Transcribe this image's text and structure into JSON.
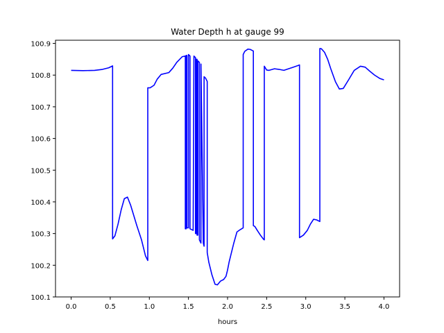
{
  "chart_data": {
    "type": "line",
    "title": "Water Depth h at gauge 99",
    "xlabel": "hours",
    "ylabel": "",
    "xlim": [
      -0.2,
      4.2
    ],
    "ylim": [
      100.1,
      100.91
    ],
    "xticks": [
      0.0,
      0.5,
      1.0,
      1.5,
      2.0,
      2.5,
      3.0,
      3.5,
      4.0
    ],
    "xtick_labels": [
      "0.0",
      "0.5",
      "1.0",
      "1.5",
      "2.0",
      "2.5",
      "3.0",
      "3.5",
      "4.0"
    ],
    "yticks": [
      100.1,
      100.2,
      100.3,
      100.4,
      100.5,
      100.6,
      100.7,
      100.8,
      100.9
    ],
    "ytick_labels": [
      "100.1",
      "100.2",
      "100.3",
      "100.4",
      "100.5",
      "100.6",
      "100.7",
      "100.8",
      "100.9"
    ],
    "grid": false,
    "series": [
      {
        "color": "#0000ff",
        "x": [
          0.0,
          0.15,
          0.3,
          0.4,
          0.48,
          0.53,
          0.53,
          0.56,
          0.6,
          0.64,
          0.68,
          0.72,
          0.76,
          0.84,
          0.9,
          0.95,
          0.98,
          0.98,
          1.01,
          1.06,
          1.1,
          1.15,
          1.25,
          1.3,
          1.35,
          1.42,
          1.46,
          1.46,
          1.47,
          1.47,
          1.48,
          1.48,
          1.5,
          1.5,
          1.52,
          1.52,
          1.56,
          1.57,
          1.59,
          1.59,
          1.6,
          1.6,
          1.61,
          1.61,
          1.62,
          1.62,
          1.64,
          1.64,
          1.66,
          1.66,
          1.69,
          1.7,
          1.7,
          1.72,
          1.73,
          1.74,
          1.74,
          1.76,
          1.8,
          1.84,
          1.87,
          1.91,
          1.95,
          1.98,
          2.0,
          2.02,
          2.04,
          2.08,
          2.12,
          2.16,
          2.2,
          2.2,
          2.22,
          2.26,
          2.29,
          2.33,
          2.33,
          2.35,
          2.38,
          2.42,
          2.46,
          2.47,
          2.47,
          2.5,
          2.53,
          2.6,
          2.66,
          2.72,
          2.78,
          2.84,
          2.9,
          2.92,
          2.92,
          2.97,
          3.02,
          3.06,
          3.1,
          3.14,
          3.18,
          3.18,
          3.2,
          3.24,
          3.28,
          3.32,
          3.38,
          3.43,
          3.48,
          3.55,
          3.62,
          3.7,
          3.76,
          3.82,
          3.88,
          3.95,
          4.0
        ],
        "y": [
          100.815,
          100.814,
          100.815,
          100.818,
          100.823,
          100.829,
          100.283,
          100.293,
          100.33,
          100.375,
          100.41,
          100.415,
          100.39,
          100.325,
          100.28,
          100.23,
          100.215,
          100.76,
          100.76,
          100.768,
          100.787,
          100.802,
          100.808,
          100.822,
          100.84,
          100.858,
          100.86,
          100.315,
          100.315,
          100.862,
          100.862,
          100.318,
          100.318,
          100.865,
          100.86,
          100.315,
          100.31,
          100.86,
          100.855,
          100.3,
          100.3,
          100.85,
          100.85,
          100.295,
          100.295,
          100.845,
          100.84,
          100.28,
          100.27,
          100.835,
          100.27,
          100.26,
          100.795,
          100.79,
          100.785,
          100.78,
          100.24,
          100.21,
          100.17,
          100.14,
          100.138,
          100.15,
          100.155,
          100.165,
          100.185,
          100.21,
          100.23,
          100.27,
          100.305,
          100.312,
          100.318,
          100.865,
          100.875,
          100.882,
          100.881,
          100.876,
          100.325,
          100.322,
          100.31,
          100.295,
          100.282,
          100.28,
          100.828,
          100.816,
          100.815,
          100.82,
          100.818,
          100.815,
          100.82,
          100.825,
          100.83,
          100.832,
          100.287,
          100.295,
          100.31,
          100.33,
          100.345,
          100.343,
          100.338,
          100.884,
          100.883,
          100.872,
          100.85,
          100.82,
          100.779,
          100.756,
          100.758,
          100.786,
          100.815,
          100.828,
          100.825,
          100.812,
          100.8,
          100.789,
          100.785
        ]
      }
    ]
  }
}
